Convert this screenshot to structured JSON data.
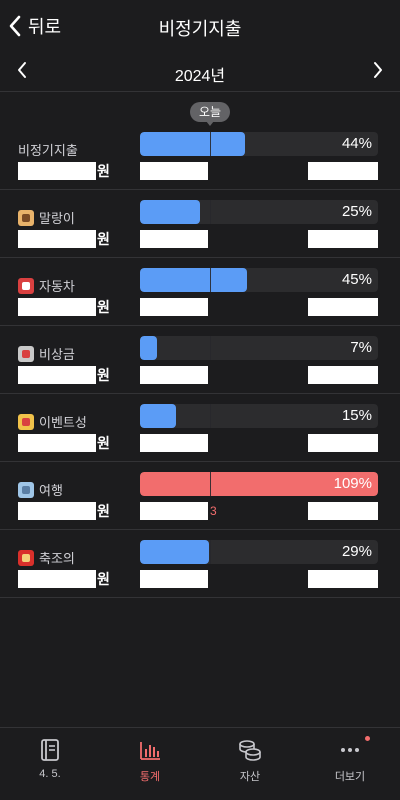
{
  "header": {
    "back_label": "뒤로",
    "title": "비정기지출"
  },
  "year_nav": {
    "year": "2024년"
  },
  "today_badge": "오늘",
  "rows": [
    {
      "name": "비정기지출",
      "emoji": "",
      "amount_suffix": "원",
      "percent": "44%",
      "fill": 0.44,
      "over": false,
      "sub_hint": ""
    },
    {
      "name": "말랑이",
      "emoji": "dog-face-icon",
      "amount_suffix": "원",
      "percent": "25%",
      "fill": 0.25,
      "over": false,
      "sub_hint": ""
    },
    {
      "name": "자동차",
      "emoji": "car-icon",
      "amount_suffix": "원",
      "percent": "45%",
      "fill": 0.45,
      "over": false,
      "sub_hint": ""
    },
    {
      "name": "비상금",
      "emoji": "hospital-icon",
      "amount_suffix": "원",
      "percent": "7%",
      "fill": 0.07,
      "over": false,
      "sub_hint": ""
    },
    {
      "name": "이벤트성",
      "emoji": "party-popper-icon",
      "amount_suffix": "원",
      "percent": "15%",
      "fill": 0.15,
      "over": false,
      "sub_hint": ""
    },
    {
      "name": "여행",
      "emoji": "airplane-icon",
      "amount_suffix": "원",
      "percent": "109%",
      "fill": 1.0,
      "over": true,
      "sub_hint": "3"
    },
    {
      "name": "축조의",
      "emoji": "envelope-icon",
      "amount_suffix": "원",
      "percent": "29%",
      "fill": 0.29,
      "over": false,
      "sub_hint": ""
    }
  ],
  "tabs": [
    {
      "label": "4. 5.",
      "icon": "ledger-icon",
      "active": false
    },
    {
      "label": "통계",
      "icon": "bar-chart-icon",
      "active": true
    },
    {
      "label": "자산",
      "icon": "coins-icon",
      "active": false
    },
    {
      "label": "더보기",
      "icon": "more-icon",
      "active": false
    }
  ],
  "colors": {
    "accent": "#f26d6d",
    "bar": "#5b9cf6",
    "background": "#1c1c1e"
  }
}
